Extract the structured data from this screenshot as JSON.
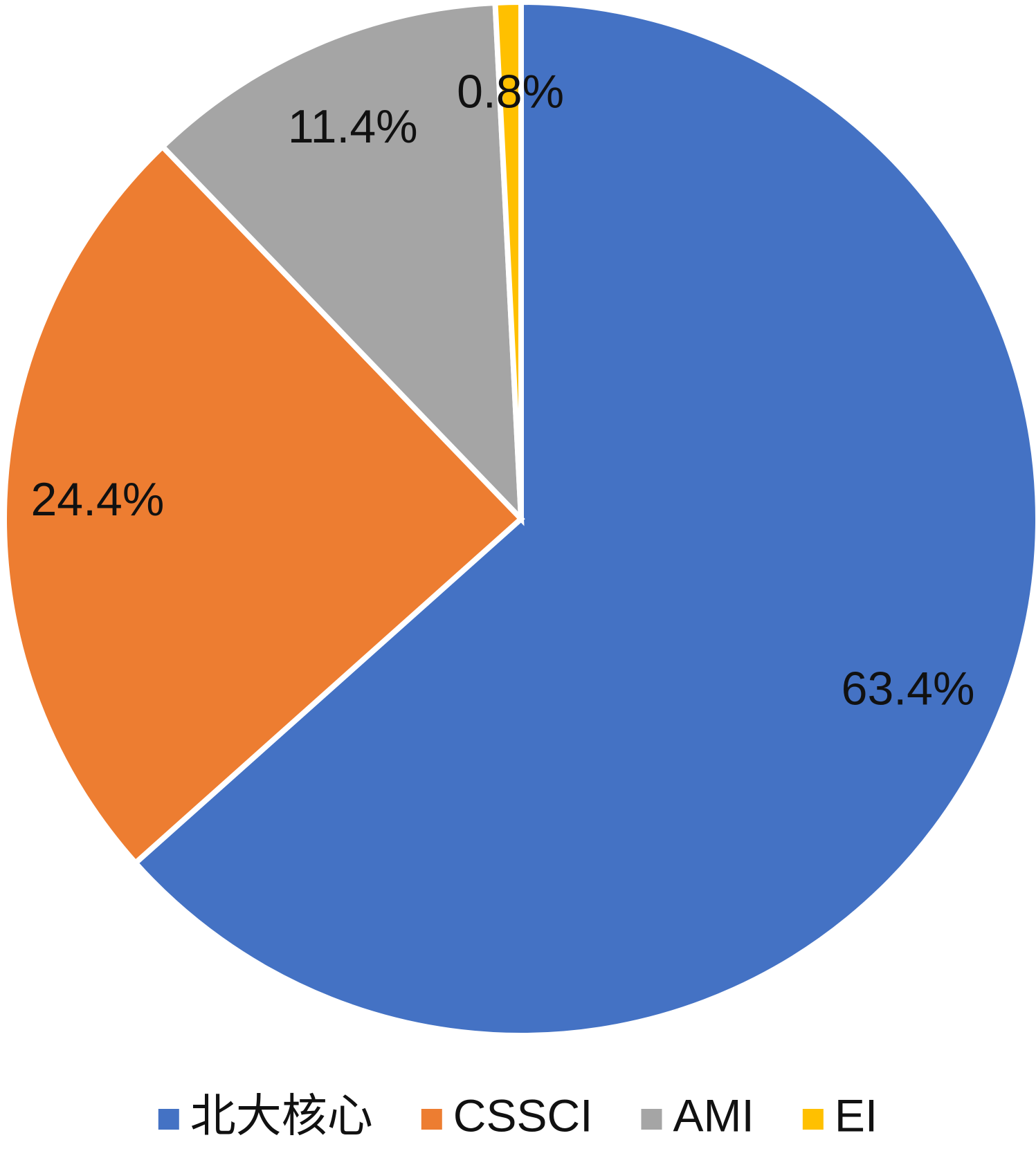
{
  "chart_data": {
    "type": "pie",
    "categories": [
      "北大核心",
      "CSSCI",
      "AMI",
      "EI"
    ],
    "values": [
      63.4,
      24.4,
      11.4,
      0.8
    ],
    "value_labels": [
      "63.4%",
      "24.4%",
      "11.4%",
      "0.8%"
    ],
    "colors": [
      "#4472c4",
      "#ed7d31",
      "#a5a5a5",
      "#ffc000"
    ],
    "legend": "bottom"
  }
}
